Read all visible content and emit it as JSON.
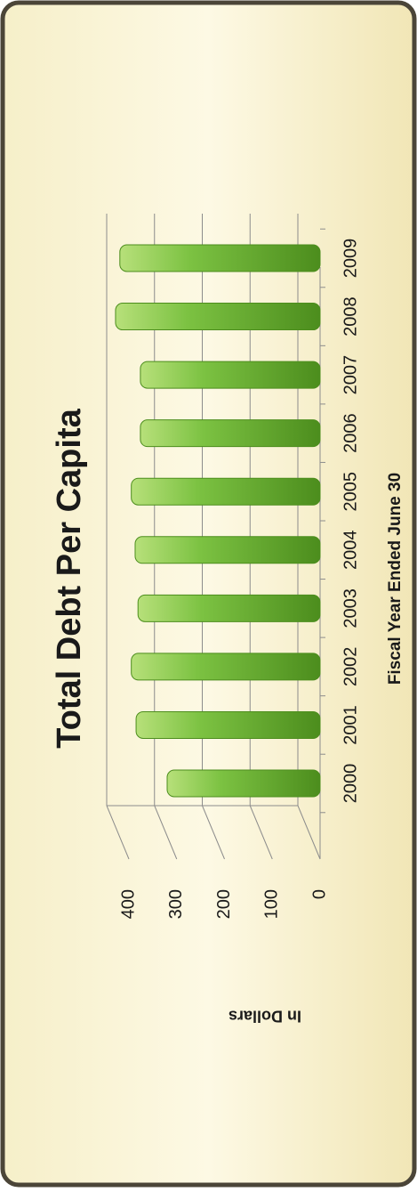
{
  "chart_data": {
    "type": "bar",
    "title": "Total Debt Per Capita",
    "x_label": "Fiscal Year Ended June 30",
    "y_label": "In Dollars",
    "categories": [
      "2000",
      "2001",
      "2002",
      "2003",
      "2004",
      "2005",
      "2006",
      "2007",
      "2008",
      "2009"
    ],
    "values": [
      320,
      385,
      395,
      381,
      387,
      395,
      376,
      376,
      428,
      419
    ],
    "color": "#7cc242",
    "ylim": [
      0,
      400
    ],
    "yticks": [
      0,
      100,
      200,
      300,
      400
    ],
    "grid": true
  }
}
